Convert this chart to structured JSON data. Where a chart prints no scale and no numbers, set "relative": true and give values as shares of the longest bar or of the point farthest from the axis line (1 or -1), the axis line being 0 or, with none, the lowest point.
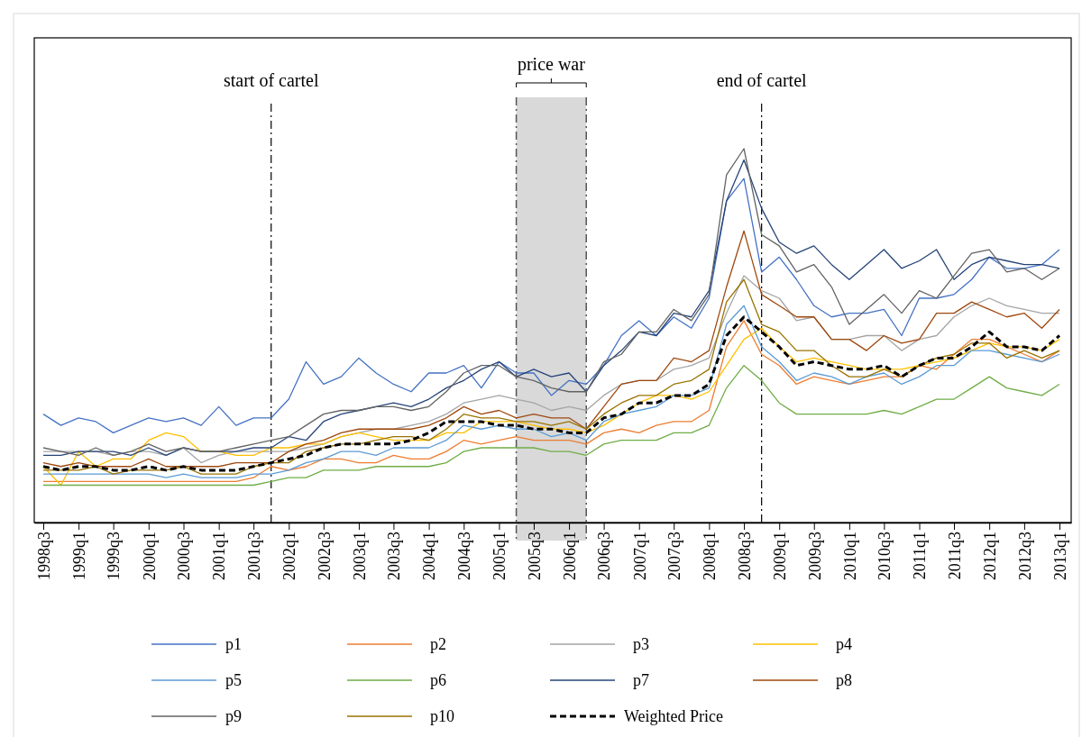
{
  "chart_data": {
    "type": "line",
    "relative": true,
    "legend": "bottom",
    "x": [
      "1998-07",
      "1998-10",
      "1999-01",
      "1999-04",
      "1999-07",
      "1999-10",
      "2000-01",
      "2000-04",
      "2000-07",
      "2000-10",
      "2001-01",
      "2001-04",
      "2001-07",
      "2001-10",
      "2002-01",
      "2002-04",
      "2002-07",
      "2002-10",
      "2003-01",
      "2003-04",
      "2003-07",
      "2003-10",
      "2004-01",
      "2004-04",
      "2004-07",
      "2004-10",
      "2005-01",
      "2005-04",
      "2005-07",
      "2005-10",
      "2006-01",
      "2006-04",
      "2006-07",
      "2006-10",
      "2007-01",
      "2007-04",
      "2007-07",
      "2007-10",
      "2008-01",
      "2008-04",
      "2008-07",
      "2008-10",
      "2009-01",
      "2009-04",
      "2009-07",
      "2009-10",
      "2010-01",
      "2010-04",
      "2010-07",
      "2010-10",
      "2011-01",
      "2011-04",
      "2011-07",
      "2011-10",
      "2012-01",
      "2012-04",
      "2012-07",
      "2012-10",
      "2013-01"
    ],
    "xlim": [
      "1998-05-15",
      "2013-03-03"
    ],
    "xticks": [
      {
        "value": "1998-07",
        "label": "1998q3"
      },
      {
        "value": "1999-01",
        "label": "1999q1"
      },
      {
        "value": "1999-07",
        "label": "1999q3"
      },
      {
        "value": "2000-01",
        "label": "2000q1"
      },
      {
        "value": "2000-07",
        "label": "2000q3"
      },
      {
        "value": "2001-01",
        "label": "2001q1"
      },
      {
        "value": "2001-07",
        "label": "2001q3"
      },
      {
        "value": "2002-01",
        "label": "2002q1"
      },
      {
        "value": "2002-07",
        "label": "2002q3"
      },
      {
        "value": "2003-01",
        "label": "2003q1"
      },
      {
        "value": "2003-07",
        "label": "2003q3"
      },
      {
        "value": "2004-01",
        "label": "2004q1"
      },
      {
        "value": "2004-07",
        "label": "2004q3"
      },
      {
        "value": "2005-01",
        "label": "2005q1"
      },
      {
        "value": "2005-07",
        "label": "2005q3"
      },
      {
        "value": "2006-01",
        "label": "2006q1"
      },
      {
        "value": "2006-07",
        "label": "2006q3"
      },
      {
        "value": "2007-01",
        "label": "2007q1"
      },
      {
        "value": "2007-07",
        "label": "2007q3"
      },
      {
        "value": "2008-01",
        "label": "2008q1"
      },
      {
        "value": "2008-07",
        "label": "2008q3"
      },
      {
        "value": "2009-01",
        "label": "2009q1"
      },
      {
        "value": "2009-07",
        "label": "2009q3"
      },
      {
        "value": "2010-01",
        "label": "2010q1"
      },
      {
        "value": "2010-07",
        "label": "2010q3"
      },
      {
        "value": "2011-01",
        "label": "2011q1"
      },
      {
        "value": "2011-07",
        "label": "2011q3"
      },
      {
        "value": "2012-01",
        "label": "2012q1"
      },
      {
        "value": "2012-07",
        "label": "2012q3"
      },
      {
        "value": "2013-01",
        "label": "2013q1"
      }
    ],
    "ref_lines": [
      {
        "axis": "x",
        "value": "2001-10",
        "label": "start of cartel",
        "line_style": "dashed",
        "color": "#000000"
      },
      {
        "axis": "x",
        "value": "2008-10",
        "label": "end of cartel",
        "line_style": "dashed",
        "color": "#000000"
      },
      {
        "axis": "x",
        "value": "2005-04",
        "line_style": "dashed",
        "color": "#555555"
      },
      {
        "axis": "x",
        "value": "2006-04",
        "line_style": "dashed",
        "color": "#555555"
      }
    ],
    "bands": [
      {
        "axis": "x",
        "from": "2005-04",
        "to": "2006-04",
        "label": "price war",
        "color": "#d9d9d9"
      }
    ],
    "series": [
      {
        "name": "p1",
        "color": "#4472c4",
        "values": [
          0.29,
          0.26,
          0.28,
          0.27,
          0.24,
          0.26,
          0.28,
          0.27,
          0.28,
          0.26,
          0.31,
          0.26,
          0.28,
          0.28,
          0.33,
          0.43,
          0.37,
          0.39,
          0.44,
          0.4,
          0.37,
          0.35,
          0.4,
          0.4,
          0.42,
          0.36,
          0.43,
          0.4,
          0.4,
          0.34,
          0.38,
          0.37,
          0.42,
          0.5,
          0.54,
          0.5,
          0.55,
          0.52,
          0.6,
          0.86,
          0.92,
          0.67,
          0.71,
          0.65,
          0.58,
          0.55,
          0.56,
          0.56,
          0.57,
          0.5,
          0.6,
          0.6,
          0.61,
          0.65,
          0.71,
          0.68,
          0.68,
          0.69,
          0.73
        ]
      },
      {
        "name": "p2",
        "color": "#ed7d31",
        "values": [
          0.11,
          0.11,
          0.11,
          0.11,
          0.11,
          0.11,
          0.11,
          0.11,
          0.11,
          0.11,
          0.11,
          0.11,
          0.12,
          0.15,
          0.14,
          0.15,
          0.17,
          0.17,
          0.16,
          0.16,
          0.18,
          0.17,
          0.17,
          0.19,
          0.22,
          0.21,
          0.22,
          0.23,
          0.22,
          0.22,
          0.22,
          0.21,
          0.24,
          0.25,
          0.24,
          0.26,
          0.27,
          0.27,
          0.3,
          0.47,
          0.54,
          0.45,
          0.42,
          0.37,
          0.39,
          0.38,
          0.37,
          0.38,
          0.39,
          0.39,
          0.42,
          0.41,
          0.45,
          0.49,
          0.49,
          0.47,
          0.45,
          0.43,
          0.46
        ]
      },
      {
        "name": "p3",
        "color": "#a5a5a5",
        "values": [
          0.19,
          0.19,
          0.19,
          0.19,
          0.18,
          0.19,
          0.19,
          0.18,
          0.2,
          0.16,
          0.18,
          0.19,
          0.19,
          0.19,
          0.19,
          0.2,
          0.21,
          0.23,
          0.24,
          0.25,
          0.25,
          0.26,
          0.27,
          0.29,
          0.32,
          0.33,
          0.34,
          0.33,
          0.32,
          0.3,
          0.31,
          0.3,
          0.34,
          0.37,
          0.38,
          0.38,
          0.41,
          0.42,
          0.44,
          0.56,
          0.66,
          0.62,
          0.6,
          0.54,
          0.55,
          0.49,
          0.49,
          0.5,
          0.5,
          0.46,
          0.49,
          0.5,
          0.55,
          0.58,
          0.6,
          0.58,
          0.57,
          0.56,
          0.56
        ]
      },
      {
        "name": "p4",
        "color": "#ffc000",
        "values": [
          0.15,
          0.1,
          0.19,
          0.15,
          0.17,
          0.17,
          0.22,
          0.24,
          0.23,
          0.19,
          0.19,
          0.18,
          0.18,
          0.2,
          0.2,
          0.21,
          0.21,
          0.23,
          0.24,
          0.23,
          0.22,
          0.22,
          0.22,
          0.24,
          0.24,
          0.27,
          0.27,
          0.27,
          0.26,
          0.25,
          0.25,
          0.24,
          0.26,
          0.29,
          0.32,
          0.34,
          0.34,
          0.33,
          0.35,
          0.42,
          0.49,
          0.52,
          0.47,
          0.43,
          0.44,
          0.43,
          0.42,
          0.41,
          0.41,
          0.41,
          0.42,
          0.43,
          0.44,
          0.46,
          0.48,
          0.47,
          0.47,
          0.46,
          0.49
        ]
      },
      {
        "name": "p5",
        "color": "#5b9bd5",
        "values": [
          0.13,
          0.13,
          0.13,
          0.13,
          0.13,
          0.13,
          0.13,
          0.12,
          0.13,
          0.12,
          0.12,
          0.12,
          0.13,
          0.13,
          0.14,
          0.16,
          0.17,
          0.19,
          0.19,
          0.18,
          0.2,
          0.2,
          0.2,
          0.22,
          0.26,
          0.25,
          0.26,
          0.25,
          0.25,
          0.23,
          0.24,
          0.22,
          0.27,
          0.29,
          0.3,
          0.31,
          0.34,
          0.34,
          0.36,
          0.53,
          0.58,
          0.47,
          0.43,
          0.38,
          0.4,
          0.39,
          0.37,
          0.39,
          0.4,
          0.37,
          0.39,
          0.42,
          0.42,
          0.46,
          0.46,
          0.45,
          0.44,
          0.43,
          0.45
        ]
      },
      {
        "name": "p6",
        "color": "#70ad47",
        "values": [
          0.1,
          0.1,
          0.1,
          0.1,
          0.1,
          0.1,
          0.1,
          0.1,
          0.1,
          0.1,
          0.1,
          0.1,
          0.1,
          0.11,
          0.12,
          0.12,
          0.14,
          0.14,
          0.14,
          0.15,
          0.15,
          0.15,
          0.15,
          0.16,
          0.19,
          0.2,
          0.2,
          0.2,
          0.2,
          0.19,
          0.19,
          0.18,
          0.21,
          0.22,
          0.22,
          0.22,
          0.24,
          0.24,
          0.26,
          0.36,
          0.42,
          0.38,
          0.32,
          0.29,
          0.29,
          0.29,
          0.29,
          0.29,
          0.3,
          0.29,
          0.31,
          0.33,
          0.33,
          0.36,
          0.39,
          0.36,
          0.35,
          0.34,
          0.37
        ]
      },
      {
        "name": "p7",
        "color": "#264478",
        "values": [
          0.18,
          0.18,
          0.19,
          0.19,
          0.19,
          0.18,
          0.2,
          0.18,
          0.2,
          0.19,
          0.19,
          0.19,
          0.2,
          0.2,
          0.23,
          0.22,
          0.27,
          0.29,
          0.3,
          0.31,
          0.32,
          0.31,
          0.33,
          0.36,
          0.38,
          0.41,
          0.43,
          0.39,
          0.41,
          0.39,
          0.4,
          0.35,
          0.42,
          0.46,
          0.51,
          0.5,
          0.56,
          0.55,
          0.62,
          0.86,
          0.97,
          0.84,
          0.75,
          0.72,
          0.74,
          0.69,
          0.65,
          0.69,
          0.73,
          0.68,
          0.7,
          0.73,
          0.65,
          0.69,
          0.71,
          0.7,
          0.69,
          0.69,
          0.68
        ]
      },
      {
        "name": "p8",
        "color": "#9e480e",
        "values": [
          0.16,
          0.15,
          0.16,
          0.15,
          0.15,
          0.15,
          0.17,
          0.15,
          0.15,
          0.15,
          0.15,
          0.16,
          0.16,
          0.16,
          0.19,
          0.21,
          0.22,
          0.24,
          0.25,
          0.25,
          0.25,
          0.25,
          0.26,
          0.28,
          0.31,
          0.29,
          0.3,
          0.28,
          0.29,
          0.28,
          0.28,
          0.25,
          0.31,
          0.37,
          0.38,
          0.38,
          0.44,
          0.43,
          0.46,
          0.63,
          0.78,
          0.61,
          0.58,
          0.55,
          0.55,
          0.49,
          0.49,
          0.46,
          0.5,
          0.48,
          0.49,
          0.56,
          0.56,
          0.59,
          0.57,
          0.55,
          0.56,
          0.52,
          0.57
        ]
      },
      {
        "name": "p9",
        "color": "#636363",
        "values": [
          0.2,
          0.19,
          0.18,
          0.2,
          0.18,
          0.19,
          0.21,
          0.19,
          0.2,
          0.19,
          0.19,
          0.2,
          0.21,
          0.22,
          0.23,
          0.26,
          0.29,
          0.3,
          0.3,
          0.31,
          0.31,
          0.3,
          0.31,
          0.35,
          0.4,
          0.42,
          0.42,
          0.39,
          0.38,
          0.36,
          0.35,
          0.35,
          0.43,
          0.45,
          0.51,
          0.51,
          0.57,
          0.54,
          0.61,
          0.93,
          1.0,
          0.77,
          0.74,
          0.67,
          0.69,
          0.63,
          0.53,
          0.57,
          0.61,
          0.56,
          0.62,
          0.6,
          0.66,
          0.72,
          0.73,
          0.67,
          0.68,
          0.65,
          0.68
        ]
      },
      {
        "name": "p10",
        "color": "#997300",
        "values": [
          0.14,
          0.14,
          0.14,
          0.15,
          0.13,
          0.14,
          0.14,
          0.14,
          0.15,
          0.13,
          0.13,
          0.13,
          0.15,
          0.16,
          0.16,
          0.19,
          0.2,
          0.21,
          0.21,
          0.22,
          0.23,
          0.23,
          0.22,
          0.25,
          0.29,
          0.28,
          0.28,
          0.27,
          0.27,
          0.26,
          0.27,
          0.25,
          0.29,
          0.32,
          0.34,
          0.34,
          0.37,
          0.38,
          0.41,
          0.59,
          0.65,
          0.53,
          0.51,
          0.46,
          0.46,
          0.42,
          0.39,
          0.39,
          0.41,
          0.39,
          0.42,
          0.44,
          0.45,
          0.48,
          0.48,
          0.44,
          0.46,
          0.44,
          0.46
        ]
      },
      {
        "name": "Weighted Price",
        "color": "#000000",
        "line_style": "dashed",
        "values": [
          0.15,
          0.14,
          0.15,
          0.15,
          0.14,
          0.14,
          0.15,
          0.14,
          0.15,
          0.14,
          0.14,
          0.14,
          0.15,
          0.16,
          0.17,
          0.18,
          0.2,
          0.21,
          0.21,
          0.21,
          0.21,
          0.22,
          0.24,
          0.27,
          0.27,
          0.27,
          0.26,
          0.26,
          0.25,
          0.25,
          0.24,
          0.24,
          0.28,
          0.29,
          0.32,
          0.32,
          0.34,
          0.34,
          0.37,
          0.5,
          0.55,
          0.51,
          0.47,
          0.42,
          0.43,
          0.42,
          0.41,
          0.41,
          0.42,
          0.39,
          0.42,
          0.44,
          0.44,
          0.47,
          0.51,
          0.47,
          0.47,
          0.46,
          0.5
        ]
      }
    ]
  }
}
